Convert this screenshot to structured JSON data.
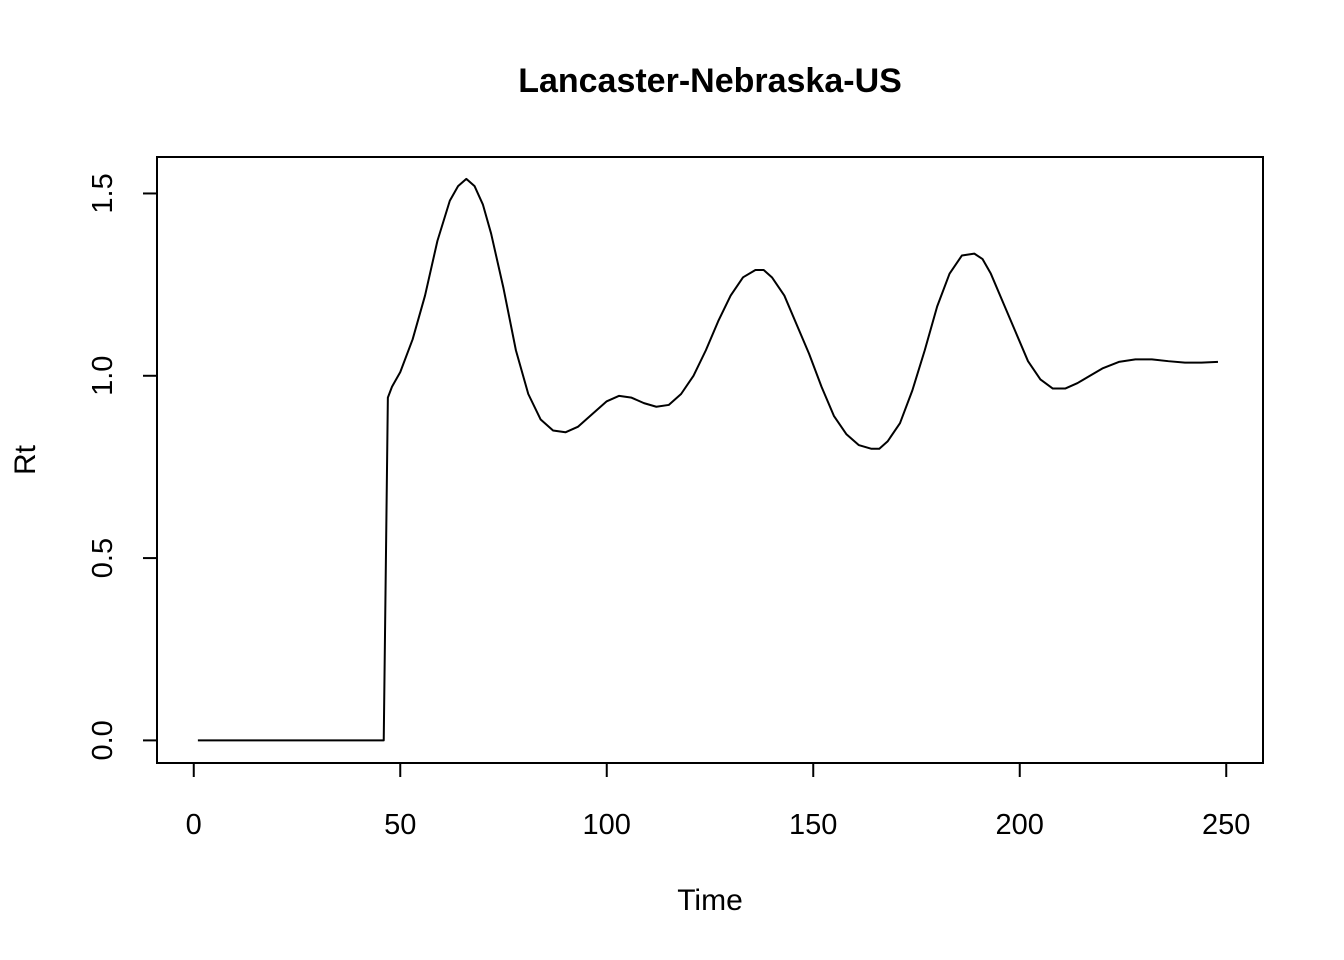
{
  "chart_data": {
    "type": "line",
    "title": "Lancaster-Nebraska-US",
    "xlabel": "Time",
    "ylabel": "Rt",
    "xlim": [
      -8.9,
      258.9
    ],
    "ylim": [
      -0.062,
      1.6
    ],
    "xticks": [
      0,
      50,
      100,
      150,
      200,
      250
    ],
    "xtick_labels": [
      "0",
      "50",
      "100",
      "150",
      "200",
      "250"
    ],
    "yticks": [
      0.0,
      0.5,
      1.0,
      1.5
    ],
    "ytick_labels": [
      "0.0",
      "0.5",
      "1.0",
      "1.5"
    ],
    "grid": false,
    "colors": {
      "line": "#000000",
      "frame": "#000000",
      "background": "#ffffff"
    },
    "series": [
      {
        "x": [
          1,
          10,
          20,
          30,
          40,
          46,
          47,
          48,
          50,
          53,
          56,
          59,
          62,
          64,
          66,
          68,
          70,
          72,
          75,
          78,
          81,
          84,
          87,
          90,
          93,
          96,
          100,
          103,
          106,
          109,
          112,
          115,
          118,
          121,
          124,
          127,
          130,
          133,
          136,
          138,
          140,
          143,
          146,
          149,
          152,
          155,
          158,
          161,
          164,
          166,
          168,
          171,
          174,
          177,
          180,
          183,
          186,
          189,
          191,
          193,
          196,
          199,
          202,
          205,
          208,
          211,
          214,
          217,
          220,
          224,
          228,
          232,
          236,
          240,
          244,
          248
        ],
        "y": [
          0.0,
          0.0,
          0.0,
          0.0,
          0.0,
          0.0,
          0.94,
          0.97,
          1.01,
          1.1,
          1.22,
          1.37,
          1.48,
          1.52,
          1.54,
          1.52,
          1.47,
          1.39,
          1.24,
          1.07,
          0.95,
          0.88,
          0.85,
          0.845,
          0.86,
          0.89,
          0.93,
          0.945,
          0.94,
          0.925,
          0.915,
          0.92,
          0.95,
          1.0,
          1.07,
          1.15,
          1.22,
          1.27,
          1.29,
          1.29,
          1.27,
          1.22,
          1.14,
          1.06,
          0.97,
          0.89,
          0.84,
          0.81,
          0.8,
          0.8,
          0.82,
          0.87,
          0.96,
          1.07,
          1.19,
          1.28,
          1.33,
          1.335,
          1.32,
          1.28,
          1.2,
          1.12,
          1.04,
          0.99,
          0.965,
          0.965,
          0.98,
          1.0,
          1.02,
          1.038,
          1.045,
          1.045,
          1.04,
          1.036,
          1.036,
          1.038
        ]
      }
    ]
  }
}
